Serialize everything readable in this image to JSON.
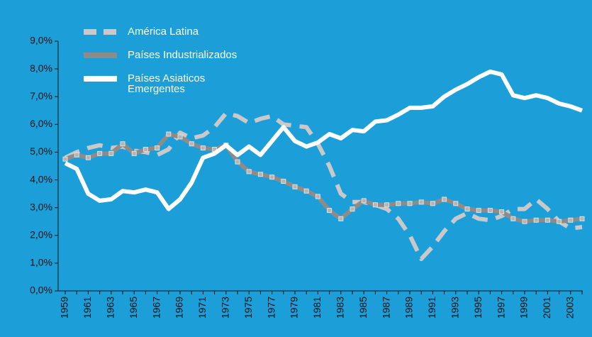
{
  "chart_data": {
    "type": "line",
    "categories": [
      "1959",
      null,
      "1961",
      null,
      "1963",
      null,
      "1965",
      null,
      "1967",
      null,
      "1969",
      null,
      "1971",
      null,
      "1973",
      null,
      "1975",
      null,
      "1977",
      null,
      "1979",
      null,
      "1981",
      null,
      "1983",
      null,
      "1985",
      null,
      "1987",
      null,
      "1989",
      null,
      "1991",
      null,
      "1993",
      null,
      "1995",
      null,
      "1997",
      null,
      "1999",
      null,
      "2001",
      null,
      "2003",
      null
    ],
    "series": [
      {
        "name": "América Latina",
        "color": "#c9c9c9",
        "dashed": true,
        "values": [
          4.8,
          5.0,
          5.15,
          5.25,
          5.15,
          5.2,
          5.05,
          5.0,
          4.9,
          5.1,
          5.7,
          5.5,
          5.6,
          5.9,
          6.4,
          6.3,
          6.05,
          6.2,
          6.3,
          6.0,
          5.95,
          5.9,
          5.3,
          4.5,
          3.5,
          3.2,
          3.2,
          3.1,
          2.95,
          2.6,
          2.0,
          1.15,
          1.6,
          2.15,
          2.6,
          2.8,
          2.6,
          2.55,
          2.7,
          2.95,
          2.95,
          3.3,
          2.95,
          2.5,
          2.25,
          2.3
        ]
      },
      {
        "name": "Países Industrializados",
        "color": "#8c8c8c",
        "markers": true,
        "values": [
          4.75,
          4.9,
          4.8,
          4.95,
          4.95,
          5.3,
          4.95,
          5.1,
          5.15,
          5.65,
          5.55,
          5.3,
          5.15,
          5.1,
          5.25,
          4.65,
          4.3,
          4.2,
          4.1,
          3.95,
          3.75,
          3.6,
          3.4,
          2.9,
          2.6,
          2.95,
          3.25,
          3.1,
          3.1,
          3.15,
          3.15,
          3.2,
          3.15,
          3.3,
          3.15,
          2.95,
          2.9,
          2.9,
          2.85,
          2.6,
          2.5,
          2.55,
          2.55,
          2.5,
          2.55,
          2.6
        ]
      },
      {
        "name": "Países Asiaticos Emergentes",
        "color": "#ffffff",
        "values": [
          4.6,
          4.4,
          3.5,
          3.25,
          3.3,
          3.6,
          3.55,
          3.65,
          3.55,
          2.95,
          3.3,
          3.9,
          4.8,
          4.95,
          5.25,
          4.9,
          5.2,
          4.9,
          5.4,
          5.9,
          5.4,
          5.2,
          5.35,
          5.65,
          5.5,
          5.8,
          5.75,
          6.1,
          6.15,
          6.35,
          6.6,
          6.6,
          6.65,
          7.0,
          7.25,
          7.45,
          7.7,
          7.9,
          7.8,
          7.05,
          6.95,
          7.05,
          6.95,
          6.75,
          6.65,
          6.5
        ]
      }
    ],
    "ylim": [
      0,
      9
    ],
    "yticks": [
      {
        "value": 0,
        "label": "0,0%"
      },
      {
        "value": 1,
        "label": "1,0%"
      },
      {
        "value": 2,
        "label": "2,0%"
      },
      {
        "value": 3,
        "label": "3,0%"
      },
      {
        "value": 4,
        "label": "4,0%"
      },
      {
        "value": 5,
        "label": "5,0%"
      },
      {
        "value": 6,
        "label": "6,0%"
      },
      {
        "value": 7,
        "label": "7,0%"
      },
      {
        "value": 8,
        "label": "8,0%"
      },
      {
        "value": 9,
        "label": "9,0%"
      }
    ],
    "legend": "upper left"
  }
}
